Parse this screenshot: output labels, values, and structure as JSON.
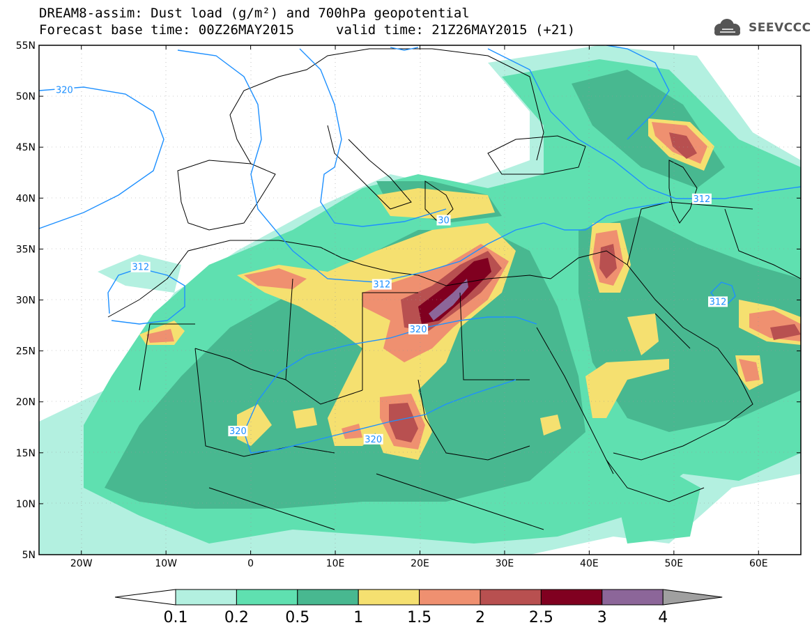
{
  "header": {
    "title_line1": "DREAM8-assim: Dust load (g/m²) and 700hPa geopotential",
    "forecast_base": "Forecast base time: 00Z26MAY2015",
    "valid_time": "valid time: 21Z26MAY2015 (+21)"
  },
  "logo": {
    "text": "SEEVCCC",
    "icon": "cloud-logo-icon"
  },
  "map": {
    "extent": {
      "lon": [
        -25,
        65
      ],
      "lat": [
        5,
        55
      ]
    },
    "lat_labels": [
      "55N",
      "50N",
      "45N",
      "40N",
      "35N",
      "30N",
      "25N",
      "20N",
      "15N",
      "10N",
      "5N"
    ],
    "lat_values": [
      55,
      50,
      45,
      40,
      35,
      30,
      25,
      20,
      15,
      10,
      5
    ],
    "lon_labels": [
      "20W",
      "10W",
      "0",
      "10E",
      "20E",
      "30E",
      "40E",
      "50E",
      "60E"
    ],
    "lon_values": [
      -20,
      -10,
      0,
      10,
      20,
      30,
      40,
      50,
      60
    ],
    "contour_labels": [
      {
        "text": "320",
        "lon": -22,
        "lat": 50.6
      },
      {
        "text": "312",
        "lon": -13,
        "lat": 33.2
      },
      {
        "text": "312",
        "lon": 15.5,
        "lat": 31.5
      },
      {
        "text": "320",
        "lon": 19.8,
        "lat": 27.1
      },
      {
        "text": "320",
        "lon": -1.5,
        "lat": 17.1
      },
      {
        "text": "320",
        "lon": 14.5,
        "lat": 16.3
      },
      {
        "text": "30",
        "lon": 22.8,
        "lat": 37.8
      },
      {
        "text": "312",
        "lon": 53.3,
        "lat": 39.9
      },
      {
        "text": "312",
        "lon": 55.2,
        "lat": 29.8
      }
    ],
    "colors": {
      "ocean": "#ffffff",
      "land_bg": "#5fe0b0",
      "contour": "#1e90ff",
      "border": "#000000"
    }
  },
  "colorbar": {
    "labels": [
      "0.1",
      "0.2",
      "0.5",
      "1",
      "1.5",
      "2",
      "2.5",
      "3",
      "4"
    ],
    "colors": [
      "#b3f0e0",
      "#5fe0b0",
      "#48b890",
      "#f5e070",
      "#ef9070",
      "#b85050",
      "#800020",
      "#8c6699",
      "#a0a0a0"
    ],
    "low_color": "#ffffff"
  }
}
